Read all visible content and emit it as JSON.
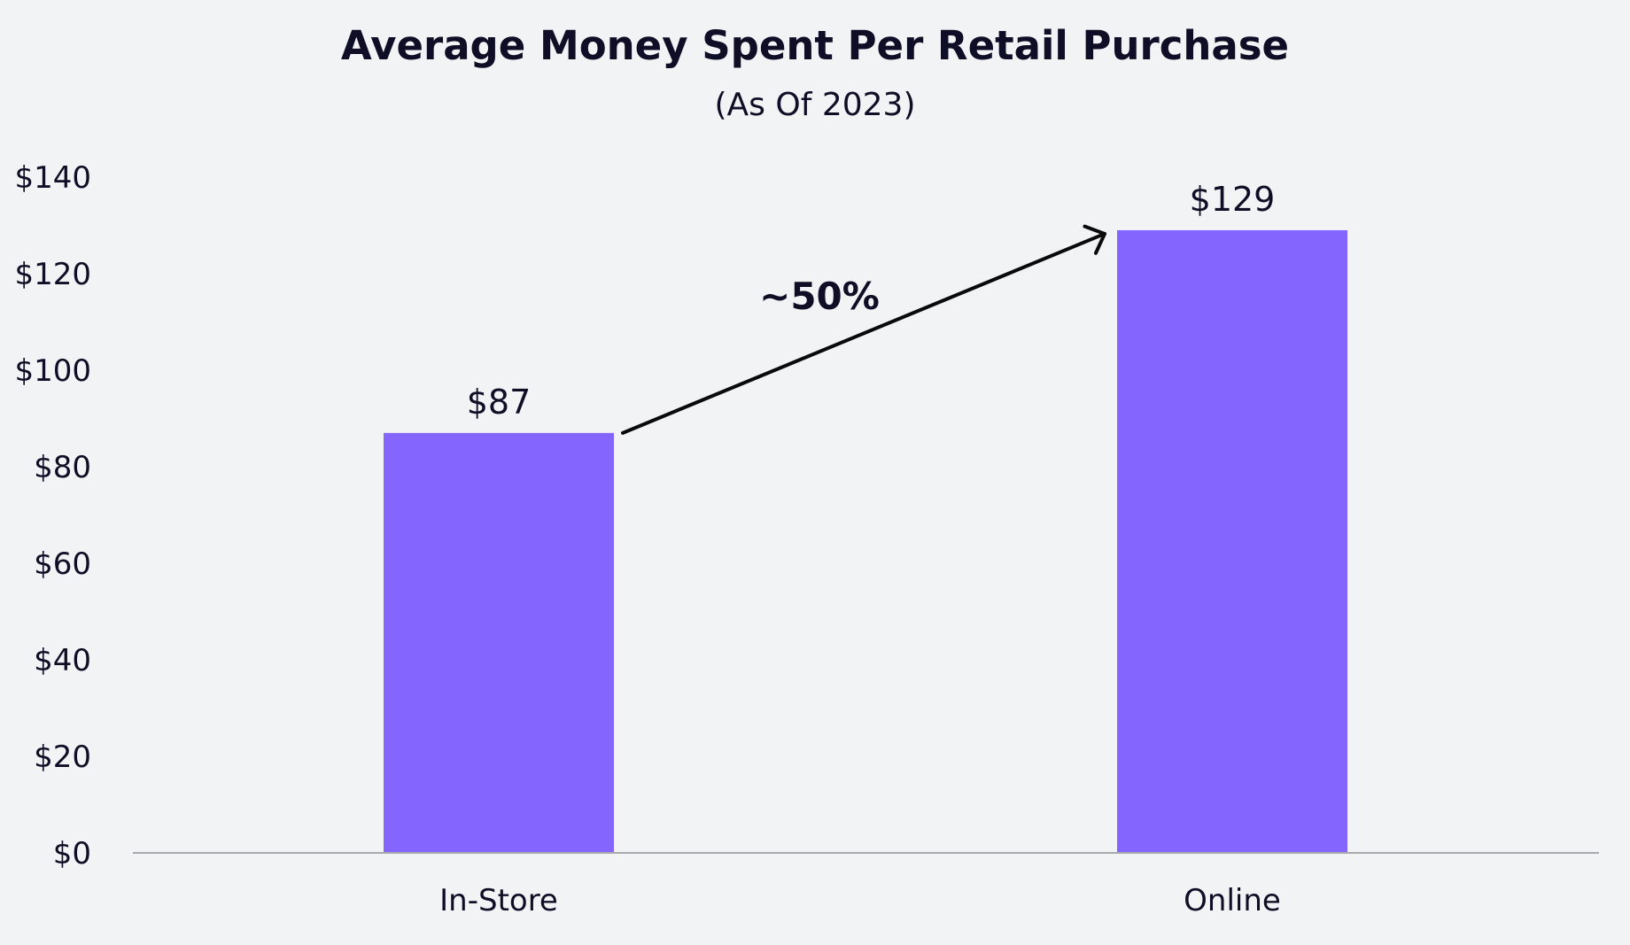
{
  "chart_data": {
    "type": "bar",
    "title": "Average Money Spent Per Retail Purchase",
    "subtitle": "(As Of 2023)",
    "categories": [
      "In-Store",
      "Online"
    ],
    "values": [
      87,
      129
    ],
    "data_labels": [
      "$87",
      "$129"
    ],
    "ylim": [
      0,
      140
    ],
    "yticks": [
      0,
      20,
      40,
      60,
      80,
      100,
      120,
      140
    ],
    "ytick_labels": [
      "$0",
      "$20",
      "$40",
      "$60",
      "$80",
      "$100",
      "$120",
      "$140"
    ],
    "grid": false,
    "legend": "none",
    "annotation": {
      "text": "~50%",
      "from": "In-Store",
      "to": "Online"
    },
    "colors": {
      "bar": "#8466ff",
      "text": "#0e0e26",
      "axis": "#a9a9ad",
      "arrow": "#0a0a0a",
      "background": "#f2f3f5"
    }
  }
}
